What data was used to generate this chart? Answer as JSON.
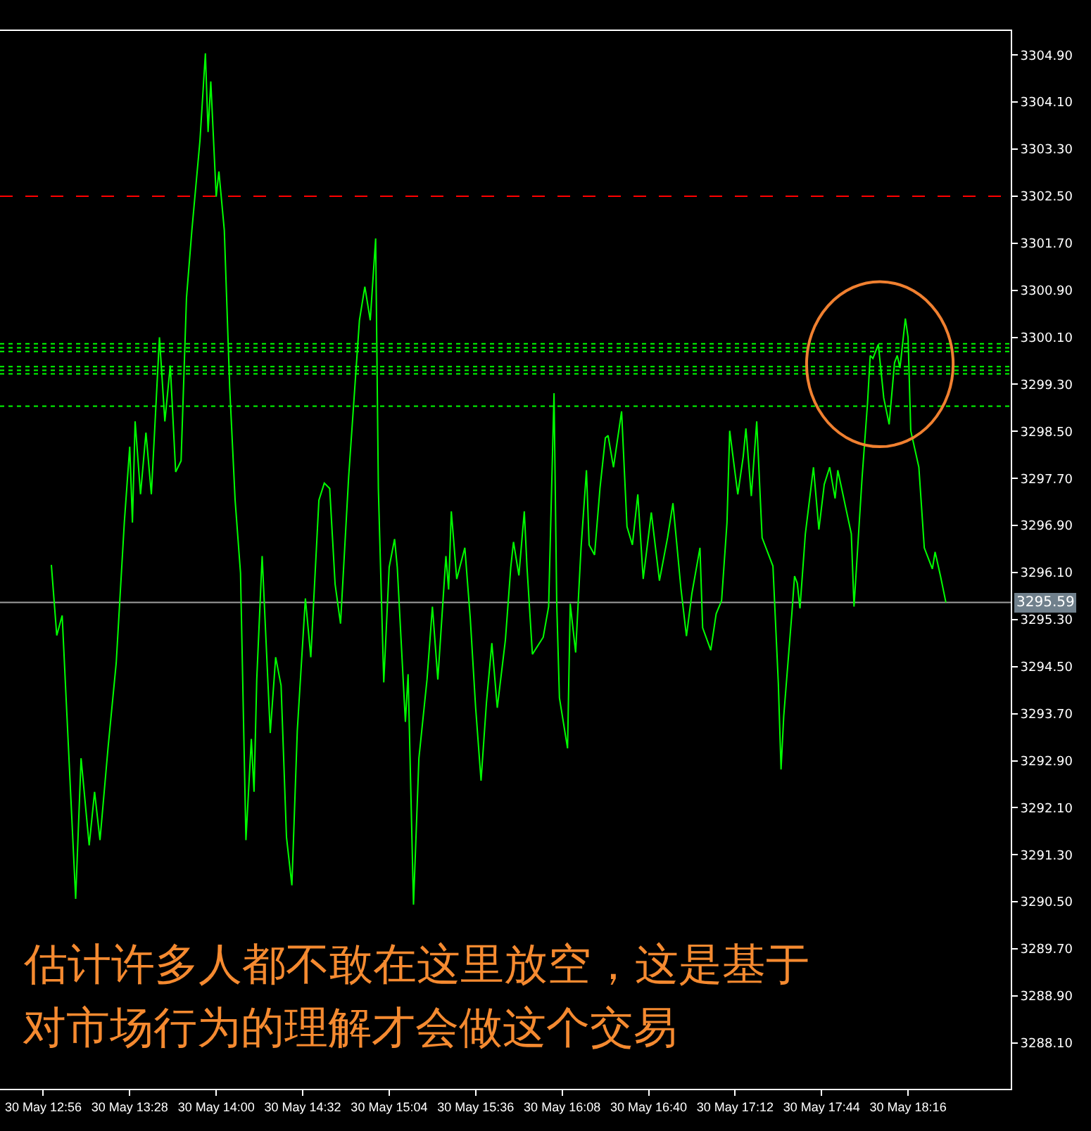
{
  "chart_data": {
    "type": "line",
    "x": [
      "--05-30T12:59",
      "--05-30T13:01",
      "--05-30T13:03",
      "--05-30T13:08",
      "--05-30T13:10",
      "--05-30T13:13",
      "--05-30T13:15",
      "--05-30T13:17",
      "--05-30T13:20",
      "--05-30T13:23",
      "--05-30T13:26",
      "--05-30T13:28",
      "--05-30T13:29",
      "--05-30T13:30",
      "--05-30T13:32",
      "--05-30T13:34",
      "--05-30T13:36",
      "--05-30T13:39",
      "--05-30T13:41",
      "--05-30T13:43",
      "--05-30T13:45",
      "--05-30T13:47",
      "--05-30T13:49",
      "--05-30T13:51",
      "--05-30T13:54",
      "--05-30T13:56",
      "--05-30T13:57",
      "--05-30T13:58",
      "--05-30T14:00",
      "--05-30T14:01",
      "--05-30T14:03",
      "--05-30T14:05",
      "--05-30T14:07",
      "--05-30T14:09",
      "--05-30T14:11",
      "--05-30T14:13",
      "--05-30T14:14",
      "--05-30T14:15",
      "--05-30T14:17",
      "--05-30T14:20",
      "--05-30T14:22",
      "--05-30T14:24",
      "--05-30T14:26",
      "--05-30T14:28",
      "--05-30T14:30",
      "--05-30T14:33",
      "--05-30T14:35",
      "--05-30T14:38",
      "--05-30T14:40",
      "--05-30T14:42",
      "--05-30T14:44",
      "--05-30T14:46",
      "--05-30T14:49",
      "--05-30T14:53",
      "--05-30T14:55",
      "--05-30T14:57",
      "--05-30T14:59",
      "--05-30T15:00",
      "--05-30T15:02",
      "--05-30T15:04",
      "--05-30T15:06",
      "--05-30T15:07",
      "--05-30T15:10",
      "--05-30T15:11",
      "--05-30T15:13",
      "--05-30T15:15",
      "--05-30T15:18",
      "--05-30T15:20",
      "--05-30T15:22",
      "--05-30T15:25",
      "--05-30T15:26",
      "--05-30T15:27",
      "--05-30T15:29",
      "--05-30T15:32",
      "--05-30T15:34",
      "--05-30T15:36",
      "--05-30T15:38",
      "--05-30T15:40",
      "--05-30T15:42",
      "--05-30T15:44",
      "--05-30T15:47",
      "--05-30T15:49",
      "--05-30T15:50",
      "--05-30T15:52",
      "--05-30T15:54",
      "--05-30T15:55",
      "--05-30T15:57",
      "--05-30T16:01",
      "--05-30T16:03",
      "--05-30T16:05",
      "--05-30T16:06",
      "--05-30T16:07",
      "--05-30T16:10",
      "--05-30T16:11",
      "--05-30T16:13",
      "--05-30T16:14",
      "--05-30T16:15",
      "--05-30T16:17",
      "--05-30T16:18",
      "--05-30T16:20",
      "--05-30T16:22",
      "--05-30T16:24",
      "--05-30T16:25",
      "--05-30T16:27",
      "--05-30T16:30",
      "--05-30T16:32",
      "--05-30T16:34",
      "--05-30T16:36",
      "--05-30T16:38",
      "--05-30T16:41",
      "--05-30T16:44",
      "--05-30T16:47",
      "--05-30T16:49",
      "--05-30T16:52",
      "--05-30T16:54",
      "--05-30T16:56",
      "--05-30T16:59",
      "--05-30T17:00",
      "--05-30T17:03",
      "--05-30T17:05",
      "--05-30T17:07",
      "--05-30T17:09",
      "--05-30T17:10",
      "--05-30T17:13",
      "--05-30T17:15",
      "--05-30T17:16",
      "--05-30T17:18",
      "--05-30T17:20",
      "--05-30T17:22",
      "--05-30T17:26",
      "--05-30T17:28",
      "--05-30T17:29",
      "--05-30T17:30",
      "--05-30T17:33",
      "--05-30T17:34",
      "--05-30T17:35",
      "--05-30T17:36",
      "--05-30T17:38",
      "--05-30T17:41",
      "--05-30T17:43",
      "--05-30T17:45",
      "--05-30T17:47",
      "--05-30T17:49",
      "--05-30T17:50",
      "--05-30T17:53",
      "--05-30T17:55",
      "--05-30T17:56",
      "--05-30T17:59",
      "--05-30T18:01",
      "--05-30T18:02",
      "--05-30T18:03",
      "--05-30T18:05",
      "--05-30T18:07",
      "--05-30T18:09",
      "--05-30T18:11",
      "--05-30T18:12",
      "--05-30T18:13",
      "--05-30T18:15",
      "--05-30T18:16",
      "--05-30T18:17",
      "--05-30T18:20",
      "--05-30T18:22",
      "--05-30T18:25",
      "--05-30T18:26",
      "--05-30T18:28",
      "--05-30T18:30"
    ],
    "series": [
      {
        "color": "#00ff00",
        "values": [
          3296.23,
          3295.03,
          3295.37,
          3290.55,
          3292.94,
          3291.46,
          3292.37,
          3291.55,
          3293.13,
          3294.56,
          3296.95,
          3298.24,
          3296.95,
          3298.67,
          3297.43,
          3298.48,
          3297.43,
          3300.1,
          3298.67,
          3299.62,
          3297.81,
          3298.0,
          3300.77,
          3301.92,
          3303.45,
          3304.93,
          3303.59,
          3304.45,
          3302.49,
          3302.92,
          3301.92,
          3299.24,
          3297.33,
          3296.09,
          3291.55,
          3293.27,
          3292.37,
          3294.28,
          3296.38,
          3293.37,
          3294.66,
          3294.18,
          3291.6,
          3290.78,
          3293.41,
          3295.66,
          3294.66,
          3297.33,
          3297.62,
          3297.53,
          3295.9,
          3295.23,
          3297.72,
          3300.39,
          3300.96,
          3300.39,
          3301.78,
          3297.53,
          3294.23,
          3296.19,
          3296.67,
          3296.19,
          3293.56,
          3294.37,
          3290.45,
          3292.94,
          3294.28,
          3295.52,
          3294.28,
          3296.38,
          3295.81,
          3297.14,
          3295.99,
          3296.52,
          3295.33,
          3293.8,
          3292.56,
          3293.89,
          3294.9,
          3293.8,
          3294.95,
          3296.19,
          3296.62,
          3296.05,
          3297.14,
          3296.19,
          3294.71,
          3295.0,
          3295.52,
          3299.15,
          3295.57,
          3293.97,
          3293.11,
          3295.57,
          3294.74,
          3295.64,
          3296.52,
          3297.84,
          3296.57,
          3296.4,
          3297.53,
          3298.39,
          3298.43,
          3297.89,
          3298.84,
          3296.88,
          3296.57,
          3297.43,
          3295.99,
          3297.12,
          3295.96,
          3296.69,
          3297.28,
          3295.81,
          3295.02,
          3295.74,
          3296.52,
          3295.16,
          3294.78,
          3295.4,
          3295.62,
          3296.95,
          3298.51,
          3297.43,
          3298.07,
          3298.55,
          3297.4,
          3298.67,
          3296.69,
          3296.21,
          3294.21,
          3292.75,
          3293.66,
          3295.4,
          3296.04,
          3295.92,
          3295.49,
          3296.76,
          3297.89,
          3296.83,
          3297.6,
          3297.89,
          3297.36,
          3297.84,
          3297.19,
          3296.76,
          3295.52,
          3297.72,
          3298.98,
          3299.79,
          3299.74,
          3299.98,
          3299.07,
          3298.62,
          3299.67,
          3299.79,
          3299.58,
          3300.42,
          3300.1,
          3298.51,
          3297.89,
          3296.52,
          3296.16,
          3296.45,
          3296.04,
          3295.59
        ]
      }
    ],
    "xlim": [
      "--05-30T12:40",
      "--05-30T18:54"
    ],
    "xticks": [
      {
        "value": "--05-30T12:56",
        "label": "30 May 12:56"
      },
      {
        "value": "--05-30T13:28",
        "label": "30 May 13:28"
      },
      {
        "value": "--05-30T14:00",
        "label": "30 May 14:00"
      },
      {
        "value": "--05-30T14:32",
        "label": "30 May 14:32"
      },
      {
        "value": "--05-30T15:04",
        "label": "30 May 15:04"
      },
      {
        "value": "--05-30T15:36",
        "label": "30 May 15:36"
      },
      {
        "value": "--05-30T16:08",
        "label": "30 May 16:08"
      },
      {
        "value": "--05-30T16:40",
        "label": "30 May 16:40"
      },
      {
        "value": "--05-30T17:12",
        "label": "30 May 17:12"
      },
      {
        "value": "--05-30T17:44",
        "label": "30 May 17:44"
      },
      {
        "value": "--05-30T18:16",
        "label": "30 May 18:16"
      }
    ],
    "ylim": [
      3287.32,
      3305.31
    ],
    "yticks": [
      {
        "value": 3288.1,
        "label": "3288.10"
      },
      {
        "value": 3288.9,
        "label": "3288.90"
      },
      {
        "value": 3289.7,
        "label": "3289.70"
      },
      {
        "value": 3290.5,
        "label": "3290.50"
      },
      {
        "value": 3291.3,
        "label": "3291.30"
      },
      {
        "value": 3292.1,
        "label": "3292.10"
      },
      {
        "value": 3292.9,
        "label": "3292.90"
      },
      {
        "value": 3293.7,
        "label": "3293.70"
      },
      {
        "value": 3294.5,
        "label": "3294.50"
      },
      {
        "value": 3295.3,
        "label": "3295.30"
      },
      {
        "value": 3296.1,
        "label": "3296.10"
      },
      {
        "value": 3296.9,
        "label": "3296.90"
      },
      {
        "value": 3297.7,
        "label": "3297.70"
      },
      {
        "value": 3298.5,
        "label": "3298.50"
      },
      {
        "value": 3299.3,
        "label": "3299.30"
      },
      {
        "value": 3300.1,
        "label": "3300.10"
      },
      {
        "value": 3300.9,
        "label": "3300.90"
      },
      {
        "value": 3301.7,
        "label": "3301.70"
      },
      {
        "value": 3302.5,
        "label": "3302.50"
      },
      {
        "value": 3303.3,
        "label": "3303.30"
      },
      {
        "value": 3304.1,
        "label": "3304.10"
      },
      {
        "value": 3304.9,
        "label": "3304.90"
      }
    ],
    "ref_lines": [
      {
        "axis": "y",
        "value": 3302.5,
        "color": "#ff0000",
        "line_style": "dashed"
      },
      {
        "axis": "y",
        "value": 3299.99,
        "color": "#00ff00",
        "line_style": "dotted"
      },
      {
        "axis": "y",
        "value": 3299.92,
        "color": "#00ff00",
        "line_style": "dotted"
      },
      {
        "axis": "y",
        "value": 3299.86,
        "color": "#00ff00",
        "line_style": "dotted"
      },
      {
        "axis": "y",
        "value": 3299.6,
        "color": "#00ff00",
        "line_style": "dotted"
      },
      {
        "axis": "y",
        "value": 3299.54,
        "color": "#00ff00",
        "line_style": "dotted"
      },
      {
        "axis": "y",
        "value": 3299.48,
        "color": "#00ff00",
        "line_style": "dotted"
      },
      {
        "axis": "y",
        "value": 3298.93,
        "color": "#00ff00",
        "line_style": "dotted"
      },
      {
        "axis": "y",
        "value": 3295.59,
        "label": "3295.59",
        "color": "#a0a0a0",
        "line_style": "solid"
      }
    ],
    "annotations": [
      "估计许多人都不敢在这里放空，这是基于",
      "对市场行为的理解才会做这个交易"
    ],
    "grid": false,
    "legend": false,
    "marker": "none",
    "line_style": "solid"
  }
}
